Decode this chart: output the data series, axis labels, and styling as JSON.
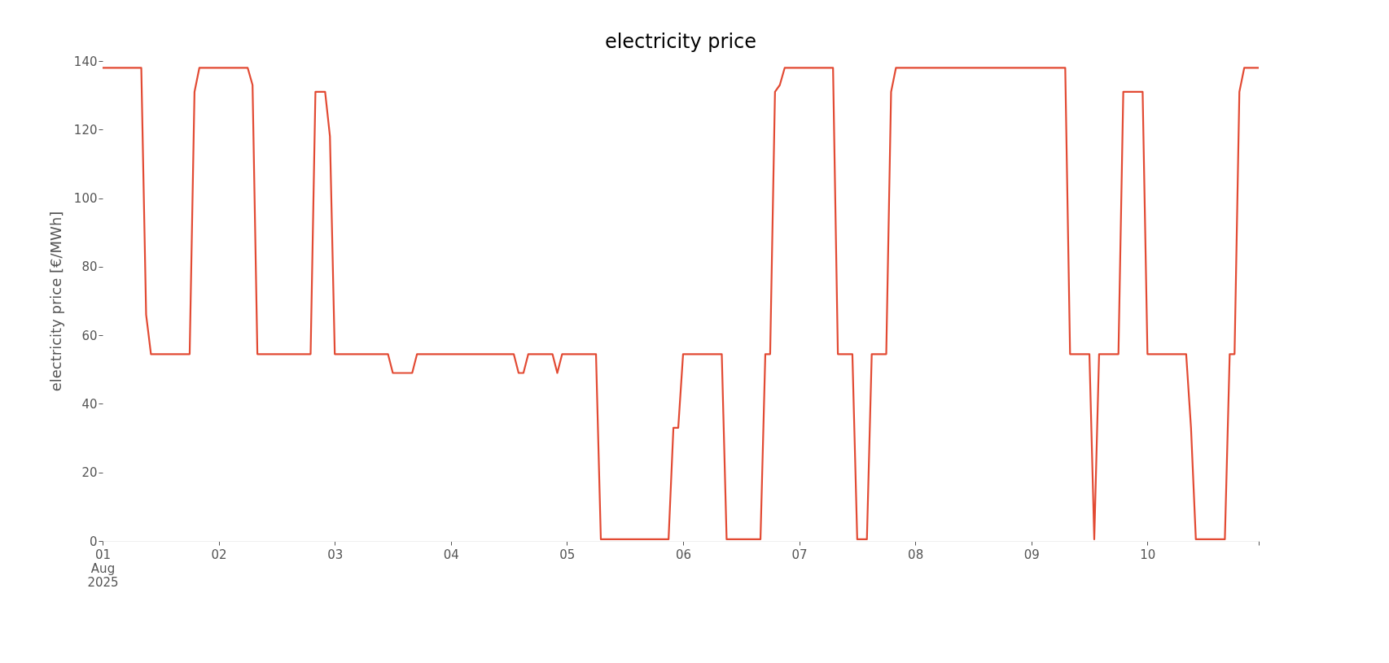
{
  "chart_data": {
    "type": "line",
    "title": "electricity price",
    "ylabel": "electricity price [€/MWh]",
    "x": [
      "2025-08-01T00:00",
      "2025-08-01T08:00",
      "2025-08-01T09:00",
      "2025-08-01T10:00",
      "2025-08-01T18:00",
      "2025-08-01T19:00",
      "2025-08-01T20:00",
      "2025-08-02T06:00",
      "2025-08-02T07:00",
      "2025-08-02T08:00",
      "2025-08-02T19:00",
      "2025-08-02T20:00",
      "2025-08-02T22:00",
      "2025-08-02T23:00",
      "2025-08-03T00:00",
      "2025-08-03T11:00",
      "2025-08-03T12:00",
      "2025-08-03T16:00",
      "2025-08-03T17:00",
      "2025-08-04T13:00",
      "2025-08-04T14:00",
      "2025-08-04T15:00",
      "2025-08-04T16:00",
      "2025-08-04T21:00",
      "2025-08-04T22:00",
      "2025-08-04T23:00",
      "2025-08-05T06:00",
      "2025-08-05T07:00",
      "2025-08-05T21:00",
      "2025-08-05T22:00",
      "2025-08-05T23:00",
      "2025-08-06T00:00",
      "2025-08-06T08:00",
      "2025-08-06T09:00",
      "2025-08-06T16:00",
      "2025-08-06T17:00",
      "2025-08-06T18:00",
      "2025-08-06T19:00",
      "2025-08-06T20:00",
      "2025-08-06T21:00",
      "2025-08-07T07:00",
      "2025-08-07T08:00",
      "2025-08-07T11:00",
      "2025-08-07T12:00",
      "2025-08-07T14:00",
      "2025-08-07T15:00",
      "2025-08-07T18:00",
      "2025-08-07T19:00",
      "2025-08-07T20:00",
      "2025-08-09T07:00",
      "2025-08-09T08:00",
      "2025-08-09T12:00",
      "2025-08-09T13:00",
      "2025-08-09T14:00",
      "2025-08-09T18:00",
      "2025-08-09T19:00",
      "2025-08-09T23:00",
      "2025-08-10T00:00",
      "2025-08-10T08:00",
      "2025-08-10T09:00",
      "2025-08-10T10:00",
      "2025-08-10T16:00",
      "2025-08-10T17:00",
      "2025-08-10T18:00",
      "2025-08-10T19:00",
      "2025-08-10T20:00",
      "2025-08-10T23:00"
    ],
    "series": [
      {
        "color": "#e24a33",
        "values": [
          138,
          138,
          66,
          54.5,
          54.5,
          131,
          138,
          138,
          133,
          54.5,
          54.5,
          131,
          131,
          118,
          54.5,
          54.5,
          49,
          49,
          54.5,
          54.5,
          49,
          49,
          54.5,
          54.5,
          49,
          54.5,
          54.5,
          0.5,
          0.5,
          33,
          33,
          54.5,
          54.5,
          0.5,
          0.5,
          54.5,
          54.5,
          131,
          133,
          138,
          138,
          54.5,
          54.5,
          0.5,
          0.5,
          54.5,
          54.5,
          131,
          138,
          138,
          54.5,
          54.5,
          0.5,
          54.5,
          54.5,
          131,
          131,
          54.5,
          54.5,
          33,
          0.5,
          0.5,
          54.5,
          54.5,
          131,
          138,
          138
        ]
      }
    ],
    "xlim": [
      "2025-08-01T00:00",
      "2025-08-10T23:00"
    ],
    "xticks": [
      {
        "value": "2025-08-01T00:00",
        "label": "01\nAug\n2025"
      },
      {
        "value": "2025-08-02T00:00",
        "label": "02"
      },
      {
        "value": "2025-08-03T00:00",
        "label": "03"
      },
      {
        "value": "2025-08-04T00:00",
        "label": "04"
      },
      {
        "value": "2025-08-05T00:00",
        "label": "05"
      },
      {
        "value": "2025-08-06T00:00",
        "label": "06"
      },
      {
        "value": "2025-08-07T00:00",
        "label": "07"
      },
      {
        "value": "2025-08-08T00:00",
        "label": "08"
      },
      {
        "value": "2025-08-09T00:00",
        "label": "09"
      },
      {
        "value": "2025-08-10T00:00",
        "label": "10"
      },
      {
        "value": "2025-08-10T23:00",
        "label": null
      }
    ],
    "ylim": [
      0,
      140
    ],
    "yticks": [
      0,
      20,
      40,
      60,
      80,
      100,
      120,
      140
    ],
    "grid": false,
    "line_style": "solid",
    "marker": "none"
  }
}
